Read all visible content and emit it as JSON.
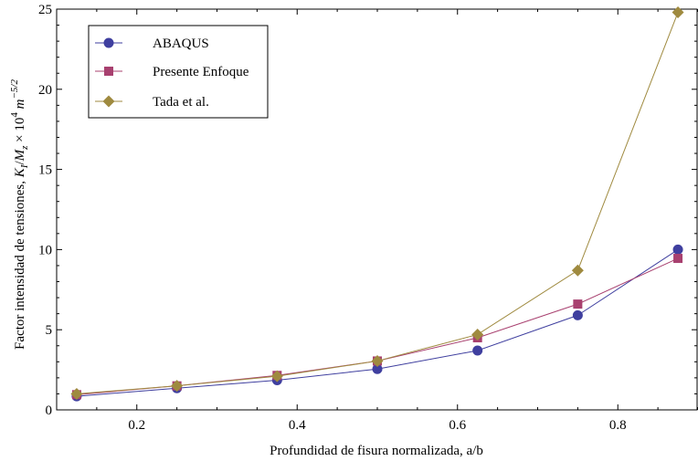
{
  "chart_data": {
    "type": "line",
    "xlabel": "Profundidad de fisura normalizada, a/b",
    "ylabel": {
      "prefix": "Factor intensidad de tensiones, ",
      "K": "K",
      "K_sub": "I",
      "slash": "/",
      "M": "M",
      "M_sub": "z",
      "times": " × 10",
      "ten_exp": "4",
      "m": " m",
      "m_exp": "−5/2"
    },
    "xlim": [
      0.1,
      0.9
    ],
    "ylim": [
      0,
      25
    ],
    "x_ticks": [
      0.2,
      0.4,
      0.6,
      0.8
    ],
    "x_tick_labels": [
      "0.2",
      "0.4",
      "0.6",
      "0.8"
    ],
    "y_ticks": [
      0,
      5,
      10,
      15,
      20,
      25
    ],
    "y_tick_labels": [
      "0",
      "5",
      "10",
      "15",
      "20",
      "25"
    ],
    "grid": false,
    "legend_position": "top-left",
    "x": [
      0.125,
      0.25,
      0.375,
      0.5,
      0.625,
      0.75,
      0.875
    ],
    "series": [
      {
        "name": "ABAQUS",
        "color": "#3f3f9f",
        "marker": "circle",
        "values": [
          0.85,
          1.35,
          1.85,
          2.55,
          3.7,
          5.9,
          10.0
        ]
      },
      {
        "name": "Presente Enfoque",
        "color": "#a8406f",
        "marker": "square",
        "values": [
          0.95,
          1.5,
          2.15,
          3.05,
          4.5,
          6.6,
          9.45
        ]
      },
      {
        "name": "Tada et al.",
        "color": "#9f8a3f",
        "marker": "diamond",
        "values": [
          1.0,
          1.5,
          2.1,
          3.05,
          4.7,
          8.7,
          24.8
        ]
      }
    ]
  }
}
